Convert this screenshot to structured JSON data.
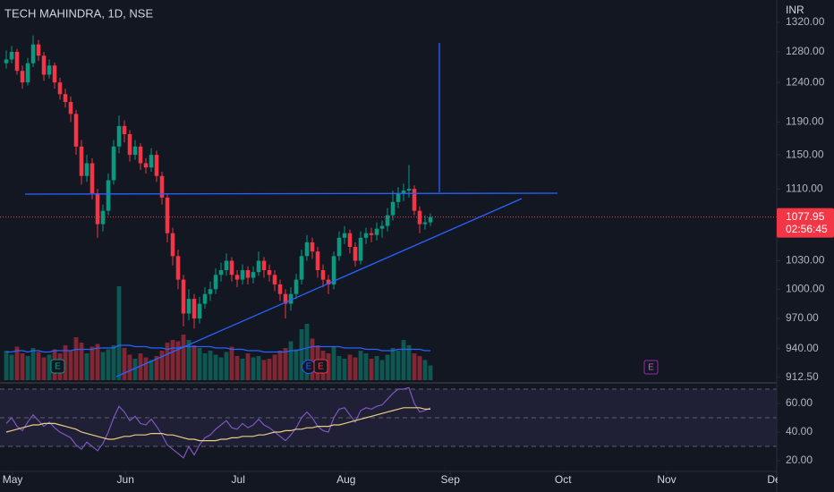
{
  "chart_data": {
    "type": "candlestick",
    "title": "TECH MAHINDRA, 1D, NSE",
    "currency": "INR",
    "log_scale": true,
    "up_color": "#089981",
    "down_color": "#f23645",
    "candles": [
      [
        1265,
        1282,
        1258,
        1270
      ],
      [
        1270,
        1288,
        1265,
        1280
      ],
      [
        1280,
        1284,
        1250,
        1255
      ],
      [
        1255,
        1262,
        1232,
        1240
      ],
      [
        1240,
        1272,
        1236,
        1265
      ],
      [
        1265,
        1302,
        1260,
        1290
      ],
      [
        1290,
        1296,
        1268,
        1275
      ],
      [
        1275,
        1280,
        1242,
        1250
      ],
      [
        1250,
        1270,
        1245,
        1262
      ],
      [
        1262,
        1266,
        1232,
        1240
      ],
      [
        1240,
        1246,
        1218,
        1225
      ],
      [
        1225,
        1232,
        1208,
        1215
      ],
      [
        1215,
        1222,
        1190,
        1200
      ],
      [
        1200,
        1205,
        1150,
        1160
      ],
      [
        1160,
        1168,
        1115,
        1125
      ],
      [
        1125,
        1150,
        1118,
        1140
      ],
      [
        1140,
        1146,
        1098,
        1105
      ],
      [
        1105,
        1110,
        1055,
        1070
      ],
      [
        1070,
        1092,
        1062,
        1085
      ],
      [
        1085,
        1128,
        1080,
        1120
      ],
      [
        1120,
        1168,
        1115,
        1160
      ],
      [
        1160,
        1198,
        1152,
        1185
      ],
      [
        1185,
        1192,
        1165,
        1175
      ],
      [
        1175,
        1180,
        1142,
        1150
      ],
      [
        1150,
        1168,
        1144,
        1160
      ],
      [
        1160,
        1164,
        1132,
        1140
      ],
      [
        1140,
        1146,
        1128,
        1135
      ],
      [
        1135,
        1158,
        1130,
        1150
      ],
      [
        1150,
        1155,
        1118,
        1125
      ],
      [
        1125,
        1130,
        1092,
        1100
      ],
      [
        1100,
        1104,
        1050,
        1060
      ],
      [
        1060,
        1066,
        1025,
        1035
      ],
      [
        1035,
        1042,
        1000,
        1010
      ],
      [
        1010,
        1015,
        962,
        975
      ],
      [
        975,
        1000,
        968,
        990
      ],
      [
        990,
        995,
        960,
        970
      ],
      [
        970,
        992,
        965,
        985
      ],
      [
        985,
        1002,
        980,
        995
      ],
      [
        995,
        1008,
        988,
        1000
      ],
      [
        1000,
        1022,
        995,
        1015
      ],
      [
        1015,
        1028,
        1008,
        1020
      ],
      [
        1020,
        1038,
        1014,
        1030
      ],
      [
        1030,
        1034,
        1008,
        1015
      ],
      [
        1015,
        1020,
        1002,
        1010
      ],
      [
        1010,
        1026,
        1005,
        1020
      ],
      [
        1020,
        1024,
        1005,
        1012
      ],
      [
        1012,
        1024,
        1006,
        1018
      ],
      [
        1018,
        1040,
        1014,
        1030
      ],
      [
        1030,
        1034,
        1012,
        1020
      ],
      [
        1020,
        1026,
        1008,
        1015
      ],
      [
        1015,
        1020,
        998,
        1005
      ],
      [
        1005,
        1010,
        988,
        995
      ],
      [
        995,
        1000,
        970,
        985
      ],
      [
        985,
        1002,
        978,
        995
      ],
      [
        995,
        1016,
        990,
        1010
      ],
      [
        1010,
        1042,
        1005,
        1035
      ],
      [
        1035,
        1058,
        1030,
        1050
      ],
      [
        1050,
        1055,
        1032,
        1040
      ],
      [
        1040,
        1045,
        1012,
        1020
      ],
      [
        1020,
        1026,
        1002,
        1010
      ],
      [
        1010,
        1015,
        995,
        1005
      ],
      [
        1005,
        1040,
        1000,
        1035
      ],
      [
        1035,
        1062,
        1030,
        1055
      ],
      [
        1055,
        1068,
        1048,
        1060
      ],
      [
        1060,
        1064,
        1038,
        1045
      ],
      [
        1045,
        1050,
        1024,
        1030
      ],
      [
        1030,
        1062,
        1026,
        1055
      ],
      [
        1055,
        1066,
        1048,
        1060
      ],
      [
        1060,
        1066,
        1050,
        1058
      ],
      [
        1058,
        1072,
        1052,
        1065
      ],
      [
        1065,
        1074,
        1055,
        1068
      ],
      [
        1068,
        1088,
        1062,
        1080
      ],
      [
        1080,
        1108,
        1074,
        1095
      ],
      [
        1095,
        1112,
        1088,
        1105
      ],
      [
        1105,
        1116,
        1096,
        1108
      ],
      [
        1108,
        1138,
        1100,
        1110
      ],
      [
        1110,
        1114,
        1080,
        1085
      ],
      [
        1085,
        1090,
        1060,
        1070
      ],
      [
        1070,
        1080,
        1064,
        1072
      ],
      [
        1072,
        1082,
        1068,
        1077.95
      ]
    ],
    "volume": [
      2.2,
      1.9,
      2.5,
      2.0,
      1.8,
      2.4,
      2.1,
      1.7,
      1.9,
      2.3,
      2.0,
      2.6,
      2.2,
      3.2,
      2.8,
      2.0,
      2.5,
      2.7,
      2.1,
      2.3,
      2.6,
      7.0,
      2.4,
      1.9,
      1.6,
      2.0,
      1.7,
      1.5,
      1.8,
      2.2,
      2.8,
      3.0,
      2.9,
      3.4,
      3.0,
      2.6,
      2.4,
      2.0,
      2.2,
      1.9,
      1.7,
      2.1,
      2.5,
      1.8,
      1.6,
      2.0,
      1.7,
      1.8,
      1.5,
      1.6,
      1.9,
      2.2,
      2.4,
      2.9,
      2.3,
      3.8,
      4.2,
      3.1,
      2.6,
      2.2,
      2.0,
      2.5,
      1.8,
      1.6,
      1.9,
      1.7,
      2.2,
      2.0,
      1.6,
      1.8,
      1.5,
      1.9,
      2.4,
      2.2,
      3.0,
      2.6,
      2.0,
      1.8,
      1.5,
      1.1
    ],
    "volume_ma": [
      2.1,
      2.1,
      2.2,
      2.2,
      2.1,
      2.2,
      2.2,
      2.1,
      2.1,
      2.2,
      2.2,
      2.2,
      2.2,
      2.3,
      2.3,
      2.3,
      2.3,
      2.4,
      2.4,
      2.4,
      2.4,
      2.6,
      2.6,
      2.6,
      2.5,
      2.5,
      2.5,
      2.4,
      2.4,
      2.4,
      2.3,
      2.4,
      2.4,
      2.5,
      2.5,
      2.5,
      2.5,
      2.5,
      2.5,
      2.4,
      2.4,
      2.4,
      2.3,
      2.3,
      2.3,
      2.2,
      2.2,
      2.2,
      2.1,
      2.1,
      2.1,
      2.1,
      2.1,
      2.2,
      2.2,
      2.3,
      2.4,
      2.5,
      2.5,
      2.5,
      2.5,
      2.5,
      2.5,
      2.4,
      2.4,
      2.4,
      2.4,
      2.3,
      2.3,
      2.3,
      2.2,
      2.2,
      2.2,
      2.3,
      2.3,
      2.3,
      2.3,
      2.3,
      2.2,
      2.2
    ],
    "volume_ma_color": "#2962ff",
    "rsi": [
      46,
      50,
      44,
      41,
      47,
      52,
      48,
      44,
      47,
      43,
      40,
      38,
      36,
      31,
      28,
      33,
      30,
      27,
      32,
      40,
      50,
      58,
      54,
      48,
      51,
      46,
      45,
      49,
      44,
      38,
      31,
      28,
      25,
      22,
      30,
      24,
      31,
      36,
      38,
      42,
      45,
      48,
      43,
      42,
      46,
      43,
      45,
      49,
      45,
      43,
      40,
      37,
      34,
      38,
      43,
      50,
      54,
      50,
      44,
      41,
      40,
      50,
      56,
      57,
      52,
      47,
      55,
      57,
      56,
      58,
      59,
      63,
      67,
      70,
      70,
      71,
      60,
      54,
      55,
      57
    ],
    "rsi_ma": [
      40,
      41,
      42,
      43,
      44,
      45,
      45,
      46,
      46,
      46,
      45,
      44,
      43,
      42,
      40,
      39,
      38,
      37,
      36,
      35,
      35,
      36,
      37,
      37,
      38,
      38,
      38,
      39,
      39,
      39,
      38,
      38,
      37,
      36,
      35,
      35,
      34,
      34,
      34,
      34,
      35,
      35,
      36,
      36,
      37,
      37,
      37,
      38,
      38,
      39,
      40,
      40,
      41,
      41,
      42,
      42,
      43,
      43,
      44,
      44,
      44,
      45,
      45,
      46,
      47,
      48,
      49,
      50,
      51,
      52,
      53,
      54,
      55,
      56,
      57,
      57,
      57,
      57,
      56,
      56
    ],
    "rsi_color": "#7e57c2",
    "rsi_ma_color": "#e8cf85",
    "rsi_levels": [
      70,
      50,
      30
    ],
    "rsi_ylim": [
      13.75,
      71.9
    ],
    "rsi_yticks": [
      {
        "value": 60,
        "label": "60.00"
      },
      {
        "value": 40,
        "label": "40.00"
      },
      {
        "value": 20,
        "label": "20.00"
      }
    ],
    "ylim": [
      908,
      1351
    ],
    "yticks": [
      {
        "value": 1320,
        "label": "1320.00"
      },
      {
        "value": 1280,
        "label": "1280.00"
      },
      {
        "value": 1240,
        "label": "1240.00"
      },
      {
        "value": 1190,
        "label": "1190.00"
      },
      {
        "value": 1150,
        "label": "1150.00"
      },
      {
        "value": 1110,
        "label": "1110.00"
      },
      {
        "value": 1030,
        "label": "1030.00"
      },
      {
        "value": 1000,
        "label": "1000.00"
      },
      {
        "value": 970,
        "label": "970.00"
      },
      {
        "value": 940,
        "label": "940.00"
      },
      {
        "value": 912.5,
        "label": "912.50"
      }
    ],
    "xlim": [
      -1.17,
      143.5
    ],
    "xticks": [
      {
        "value": 1.17,
        "label": "May"
      },
      {
        "value": 22.2,
        "label": "Jun"
      },
      {
        "value": 43.2,
        "label": "Jul"
      },
      {
        "value": 63.3,
        "label": "Aug"
      },
      {
        "value": 82.7,
        "label": "Sep"
      },
      {
        "value": 103.7,
        "label": "Oct"
      },
      {
        "value": 123,
        "label": "Nov"
      },
      {
        "value": 143.5,
        "label": "Dec"
      }
    ],
    "last_price": 1077.95,
    "countdown": "02:56:45",
    "events": [
      "E",
      "E",
      "E",
      "E"
    ]
  }
}
